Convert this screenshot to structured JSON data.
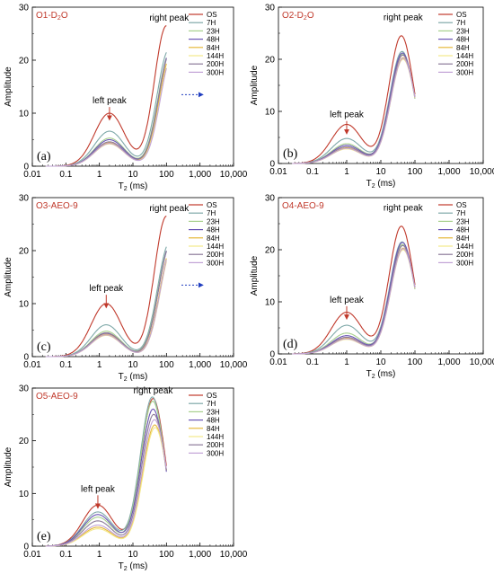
{
  "colors": {
    "OS": "#c0392b",
    "7H": "#7fa9a9",
    "23H": "#a8d08d",
    "48H": "#6a55b5",
    "84H": "#e6b93c",
    "144H": "#f4e88a",
    "200H": "#8c7a9a",
    "300H": "#c2a3d6",
    "title": "#c0392b",
    "arrow_red": "#c0392b",
    "arrow_blue": "#1f3dbf"
  },
  "icons": {
    "left_peak_arrow": "down-arrow-icon",
    "shift_arrow": "right-arrow-icon"
  },
  "chart_data": [
    {
      "type": "line",
      "title": "O1-D",
      "title_sub": "2",
      "title_tail": "O",
      "letter": "(a)",
      "xlabel": "T",
      "xlabel_sub": "2",
      "xlabel_tail": " (ms)",
      "ylabel": "Amplitude",
      "x_scale": "log",
      "xlim": [
        0.01,
        10000
      ],
      "ylim": [
        0,
        30
      ],
      "x_ticks": [
        "0.01",
        "0.1",
        "1",
        "10",
        "100",
        "1,000",
        "10,000"
      ],
      "y_ticks": [
        "0",
        "10",
        "20",
        "30"
      ],
      "legend": [
        "OS",
        "7H",
        "23H",
        "48H",
        "84H",
        "144H",
        "200H",
        "300H"
      ],
      "legend_position": "top-right",
      "annotations": [
        {
          "text": "left peak",
          "x": 2.0,
          "y": 11.5,
          "arrow": "down"
        },
        {
          "text": "right peak",
          "x": 120,
          "y": 27.5
        }
      ],
      "shift_arrow": true,
      "series": [
        {
          "name": "OS",
          "left_peak": 10,
          "right_peak": 26.5,
          "right_x": 100
        },
        {
          "name": "7H",
          "left_peak": 6.6,
          "right_peak": 22,
          "right_x": 120
        },
        {
          "name": "23H",
          "left_peak": 5.3,
          "right_peak": 21.5,
          "right_x": 130
        },
        {
          "name": "48H",
          "left_peak": 5.0,
          "right_peak": 21.8,
          "right_x": 135
        },
        {
          "name": "84H",
          "left_peak": 4.4,
          "right_peak": 21.0,
          "right_x": 140
        },
        {
          "name": "144H",
          "left_peak": 4.2,
          "right_peak": 20.5,
          "right_x": 145
        },
        {
          "name": "200H",
          "left_peak": 4.6,
          "right_peak": 21.6,
          "right_x": 135
        },
        {
          "name": "300H",
          "left_peak": 4.3,
          "right_peak": 20.8,
          "right_x": 150
        }
      ]
    },
    {
      "type": "line",
      "title": "O2-D",
      "title_sub": "2",
      "title_tail": "O",
      "letter": "(b)",
      "xlabel": "T",
      "xlabel_sub": "2",
      "xlabel_tail": " (ms)",
      "ylabel": "Amplitude",
      "x_scale": "log",
      "xlim": [
        0.01,
        10000
      ],
      "ylim": [
        0,
        30
      ],
      "x_ticks": [
        "0.01",
        "0.1",
        "1",
        "10",
        "100",
        "1,000",
        "10,000"
      ],
      "y_ticks": [
        "0",
        "10",
        "20",
        "30"
      ],
      "legend": [
        "OS",
        "7H",
        "23H",
        "48H",
        "84H",
        "144H",
        "200H",
        "300H"
      ],
      "legend_position": "top-right",
      "annotations": [
        {
          "text": "left peak",
          "x": 1.0,
          "y": 8.5,
          "arrow": "down"
        },
        {
          "text": "right peak",
          "x": 45,
          "y": 27.5
        }
      ],
      "shift_arrow": false,
      "series": [
        {
          "name": "OS",
          "left_peak": 7.5,
          "right_peak": 24.5,
          "right_x": 40
        },
        {
          "name": "7H",
          "left_peak": 4.8,
          "right_peak": 21.5,
          "right_x": 42
        },
        {
          "name": "23H",
          "left_peak": 3.8,
          "right_peak": 21.0,
          "right_x": 43
        },
        {
          "name": "48H",
          "left_peak": 3.5,
          "right_peak": 21.2,
          "right_x": 43
        },
        {
          "name": "84H",
          "left_peak": 3.0,
          "right_peak": 20.3,
          "right_x": 45
        },
        {
          "name": "144H",
          "left_peak": 2.8,
          "right_peak": 20.0,
          "right_x": 45
        },
        {
          "name": "200H",
          "left_peak": 3.2,
          "right_peak": 20.8,
          "right_x": 44
        },
        {
          "name": "300H",
          "left_peak": 2.9,
          "right_peak": 20.2,
          "right_x": 45
        }
      ]
    },
    {
      "type": "line",
      "title": "O3-AEO-9",
      "letter": "(c)",
      "xlabel": "T",
      "xlabel_sub": "2",
      "xlabel_tail": " (ms)",
      "ylabel": "Amplitude",
      "x_scale": "log",
      "xlim": [
        0.01,
        10000
      ],
      "ylim": [
        0,
        30
      ],
      "x_ticks": [
        "0.01",
        "0.1",
        "1",
        "10",
        "100",
        "1,000",
        "10,000"
      ],
      "y_ticks": [
        "0",
        "10",
        "20",
        "30"
      ],
      "legend": [
        "OS",
        "7H",
        "23H",
        "48H",
        "84H",
        "144H",
        "200H",
        "300H"
      ],
      "legend_position": "top-right",
      "annotations": [
        {
          "text": "left peak",
          "x": 1.6,
          "y": 12.0,
          "arrow": "down"
        },
        {
          "text": "right peak",
          "x": 120,
          "y": 27.5
        }
      ],
      "shift_arrow": true,
      "series": [
        {
          "name": "OS",
          "left_peak": 10,
          "right_peak": 26.5,
          "right_x": 100
        },
        {
          "name": "7H",
          "left_peak": 6.0,
          "right_peak": 21.5,
          "right_x": 125
        },
        {
          "name": "23H",
          "left_peak": 4.8,
          "right_peak": 21.0,
          "right_x": 130
        },
        {
          "name": "48H",
          "left_peak": 4.4,
          "right_peak": 21.3,
          "right_x": 135
        },
        {
          "name": "84H",
          "left_peak": 4.2,
          "right_peak": 20.5,
          "right_x": 145
        },
        {
          "name": "144H",
          "left_peak": 4.0,
          "right_peak": 20.2,
          "right_x": 150
        },
        {
          "name": "200H",
          "left_peak": 4.5,
          "right_peak": 21.2,
          "right_x": 135
        },
        {
          "name": "300H",
          "left_peak": 4.1,
          "right_peak": 20.6,
          "right_x": 150
        }
      ]
    },
    {
      "type": "line",
      "title": "O4-AEO-9",
      "letter": "(d)",
      "xlabel": "T",
      "xlabel_sub": "2",
      "xlabel_tail": " (ms)",
      "ylabel": "Amplitude",
      "x_scale": "log",
      "xlim": [
        0.01,
        10000
      ],
      "ylim": [
        0,
        30
      ],
      "x_ticks": [
        "0.01",
        "0.1",
        "1",
        "10",
        "100",
        "1,000",
        "10,000"
      ],
      "y_ticks": [
        "0",
        "10",
        "20",
        "30"
      ],
      "legend": [
        "OS",
        "7H",
        "23H",
        "48H",
        "84H",
        "144H",
        "200H",
        "300H"
      ],
      "legend_position": "top-right",
      "annotations": [
        {
          "text": "left peak",
          "x": 1.0,
          "y": 9.5,
          "arrow": "down"
        },
        {
          "text": "right peak",
          "x": 45,
          "y": 27.5
        }
      ],
      "shift_arrow": false,
      "series": [
        {
          "name": "OS",
          "left_peak": 8.0,
          "right_peak": 24.5,
          "right_x": 40
        },
        {
          "name": "7H",
          "left_peak": 5.5,
          "right_peak": 21.5,
          "right_x": 42
        },
        {
          "name": "23H",
          "left_peak": 4.0,
          "right_peak": 21.0,
          "right_x": 43
        },
        {
          "name": "48H",
          "left_peak": 3.5,
          "right_peak": 21.4,
          "right_x": 43
        },
        {
          "name": "84H",
          "left_peak": 3.0,
          "right_peak": 20.3,
          "right_x": 45
        },
        {
          "name": "144H",
          "left_peak": 2.8,
          "right_peak": 20.0,
          "right_x": 45
        },
        {
          "name": "200H",
          "left_peak": 3.2,
          "right_peak": 20.8,
          "right_x": 44
        },
        {
          "name": "300H",
          "left_peak": 2.9,
          "right_peak": 20.2,
          "right_x": 45
        }
      ]
    },
    {
      "type": "line",
      "title": "O5-AEO-9",
      "letter": "(e)",
      "xlabel": "T",
      "xlabel_sub": "2",
      "xlabel_tail": " (ms)",
      "ylabel": "Amplitude",
      "x_scale": "log",
      "xlim": [
        0.01,
        10000
      ],
      "ylim": [
        0,
        30
      ],
      "x_ticks": [
        "0.01",
        "0.1",
        "1",
        "10",
        "100",
        "1,000",
        "10,000"
      ],
      "y_ticks": [
        "0",
        "10",
        "20",
        "30"
      ],
      "legend": [
        "OS",
        "7H",
        "23H",
        "48H",
        "84H",
        "144H",
        "200H",
        "300H"
      ],
      "legend_position": "top-right",
      "annotations": [
        {
          "text": "left peak",
          "x": 0.9,
          "y": 10.0,
          "arrow": "down"
        },
        {
          "text": "right peak",
          "x": 40,
          "y": 29.0
        }
      ],
      "shift_arrow": false,
      "series": [
        {
          "name": "OS",
          "left_peak": 7.8,
          "right_peak": 28.0,
          "right_x": 40
        },
        {
          "name": "7H",
          "left_peak": 6.5,
          "right_peak": 28.3,
          "right_x": 38
        },
        {
          "name": "23H",
          "left_peak": 5.5,
          "right_peak": 27.5,
          "right_x": 39
        },
        {
          "name": "48H",
          "left_peak": 6.0,
          "right_peak": 26.0,
          "right_x": 40
        },
        {
          "name": "84H",
          "left_peak": 3.6,
          "right_peak": 23.0,
          "right_x": 45
        },
        {
          "name": "144H",
          "left_peak": 3.3,
          "right_peak": 22.5,
          "right_x": 46
        },
        {
          "name": "200H",
          "left_peak": 4.8,
          "right_peak": 25.0,
          "right_x": 42
        },
        {
          "name": "300H",
          "left_peak": 4.0,
          "right_peak": 24.0,
          "right_x": 44
        }
      ]
    }
  ]
}
